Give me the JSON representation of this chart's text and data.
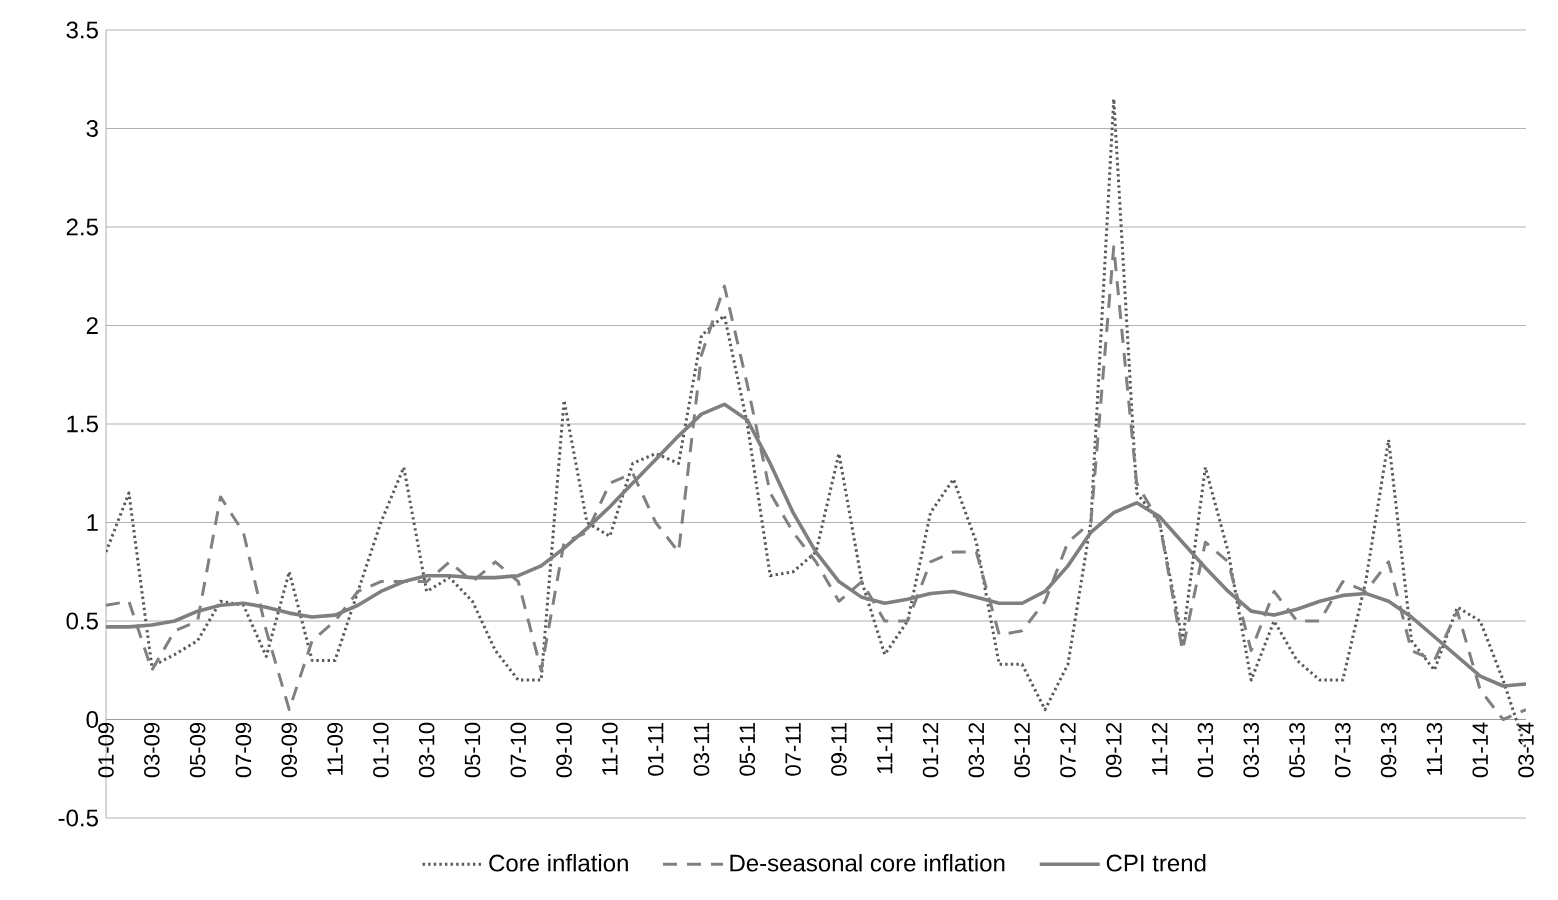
{
  "chart_data": {
    "type": "line",
    "categories": [
      "01-09",
      null,
      "03-09",
      null,
      "05-09",
      null,
      "07-09",
      null,
      "09-09",
      null,
      "11-09",
      null,
      "01-10",
      null,
      "03-10",
      null,
      "05-10",
      null,
      "07-10",
      null,
      "09-10",
      null,
      "11-10",
      null,
      "01-11",
      null,
      "03-11",
      null,
      "05-11",
      null,
      "07-11",
      null,
      "09-11",
      null,
      "11-11",
      null,
      "01-12",
      null,
      "03-12",
      null,
      "05-12",
      null,
      "07-12",
      null,
      "09-12",
      null,
      "11-12",
      null,
      "01-13",
      null,
      "03-13",
      null,
      "05-13",
      null,
      "07-13",
      null,
      "09-13",
      null,
      "11-13",
      null,
      "01-14",
      null,
      "03-14"
    ],
    "series": [
      {
        "name": "Core inflation",
        "color": "#595959",
        "line_style": "dotted",
        "values": [
          0.85,
          1.15,
          0.27,
          0.33,
          0.4,
          0.6,
          0.58,
          0.32,
          0.75,
          0.3,
          0.3,
          0.65,
          1.0,
          1.28,
          0.65,
          0.72,
          0.6,
          0.35,
          0.2,
          0.2,
          1.62,
          1.0,
          0.93,
          1.3,
          1.35,
          1.3,
          1.95,
          2.05,
          1.5,
          0.73,
          0.75,
          0.85,
          1.35,
          0.7,
          0.33,
          0.5,
          1.05,
          1.22,
          0.9,
          0.28,
          0.28,
          0.05,
          0.28,
          1.0,
          3.15,
          1.15,
          1.0,
          0.4,
          1.28,
          0.85,
          0.2,
          0.5,
          0.3,
          0.2,
          0.2,
          0.7,
          1.42,
          0.4,
          0.25,
          0.57,
          0.5,
          0.2,
          -0.15
        ]
      },
      {
        "name": "De-seasonal core inflation",
        "color": "#808080",
        "line_style": "dashed",
        "values": [
          0.58,
          0.6,
          0.25,
          0.45,
          0.5,
          1.13,
          0.95,
          0.45,
          0.05,
          0.4,
          0.5,
          0.65,
          0.7,
          0.7,
          0.7,
          0.8,
          0.7,
          0.8,
          0.7,
          0.25,
          0.9,
          0.95,
          1.2,
          1.25,
          1.0,
          0.85,
          1.85,
          2.2,
          1.7,
          1.15,
          0.95,
          0.8,
          0.6,
          0.7,
          0.5,
          0.5,
          0.8,
          0.85,
          0.85,
          0.43,
          0.45,
          0.6,
          0.9,
          1.0,
          2.4,
          1.2,
          1.0,
          0.35,
          0.9,
          0.8,
          0.35,
          0.65,
          0.5,
          0.5,
          0.7,
          0.65,
          0.8,
          0.35,
          0.3,
          0.55,
          0.15,
          0.0,
          0.05
        ]
      },
      {
        "name": "CPI trend",
        "color": "#7f7f7f",
        "line_style": "solid",
        "values": [
          0.47,
          0.47,
          0.48,
          0.5,
          0.55,
          0.58,
          0.59,
          0.57,
          0.54,
          0.52,
          0.53,
          0.58,
          0.65,
          0.7,
          0.73,
          0.73,
          0.72,
          0.72,
          0.73,
          0.78,
          0.87,
          0.97,
          1.08,
          1.2,
          1.32,
          1.44,
          1.55,
          1.6,
          1.52,
          1.3,
          1.05,
          0.85,
          0.7,
          0.62,
          0.59,
          0.61,
          0.64,
          0.65,
          0.62,
          0.59,
          0.59,
          0.65,
          0.78,
          0.95,
          1.05,
          1.1,
          1.03,
          0.9,
          0.77,
          0.65,
          0.55,
          0.53,
          0.56,
          0.6,
          0.63,
          0.64,
          0.6,
          0.52,
          0.42,
          0.32,
          0.22,
          0.17,
          0.18
        ]
      }
    ],
    "ylim": [
      -0.5,
      3.5
    ],
    "yticks": [
      -0.5,
      0,
      0.5,
      1,
      1.5,
      2,
      2.5,
      3,
      3.5
    ],
    "grid": "y",
    "legend": "bottom"
  }
}
